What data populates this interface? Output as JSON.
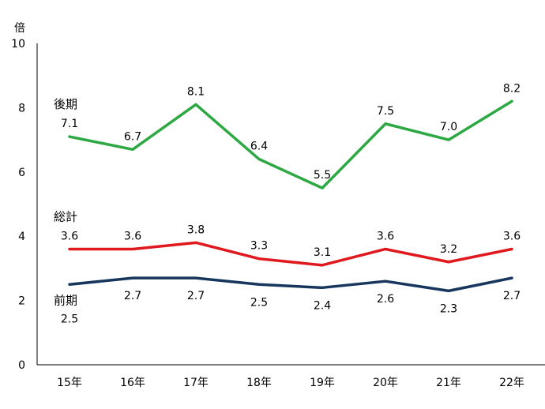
{
  "chart_data": {
    "type": "line",
    "ylabel": "倍",
    "ylim": [
      0,
      10
    ],
    "yticks": [
      0,
      2,
      4,
      6,
      8,
      10
    ],
    "categories": [
      "15年",
      "16年",
      "17年",
      "18年",
      "19年",
      "20年",
      "21年",
      "22年"
    ],
    "grid": false,
    "series": [
      {
        "name": "後期",
        "color": "#2ea843",
        "values": [
          7.1,
          6.7,
          8.1,
          6.4,
          5.5,
          7.5,
          7.0,
          8.2
        ],
        "labels": [
          "7.1",
          "6.7",
          "8.1",
          "6.4",
          "5.5",
          "7.5",
          "7.0",
          "8.2"
        ],
        "label_position": "above"
      },
      {
        "name": "総計",
        "color": "#e0191f",
        "values": [
          3.6,
          3.6,
          3.8,
          3.3,
          3.1,
          3.6,
          3.2,
          3.6
        ],
        "labels": [
          "3.6",
          "3.6",
          "3.8",
          "3.3",
          "3.1",
          "3.6",
          "3.2",
          "3.6"
        ],
        "label_position": "above"
      },
      {
        "name": "前期",
        "color": "#17365d",
        "values": [
          2.5,
          2.7,
          2.7,
          2.5,
          2.4,
          2.6,
          2.3,
          2.7
        ],
        "labels": [
          "2.5",
          "2.7",
          "2.7",
          "2.5",
          "2.4",
          "2.6",
          "2.3",
          "2.7"
        ],
        "label_position": "below"
      }
    ]
  }
}
